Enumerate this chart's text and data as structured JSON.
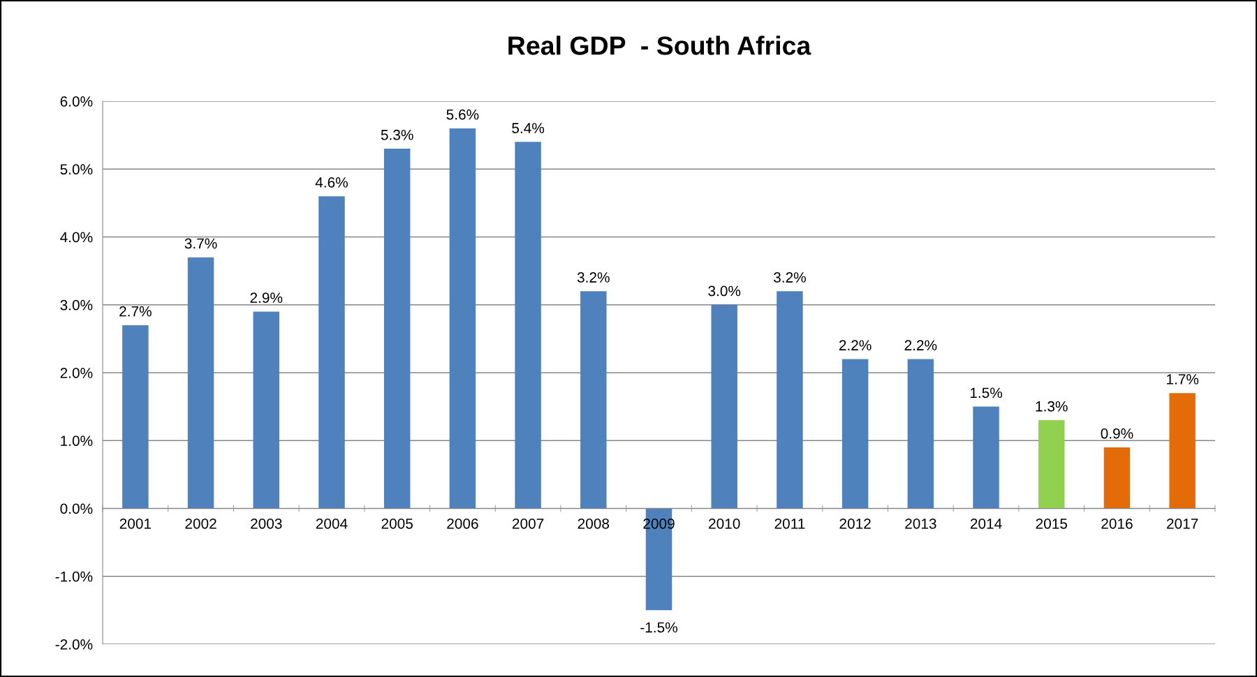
{
  "chart_data": {
    "type": "bar",
    "title": "Real GDP  - South Africa",
    "categories": [
      "2001",
      "2002",
      "2003",
      "2004",
      "2005",
      "2006",
      "2007",
      "2008",
      "2009",
      "2010",
      "2011",
      "2012",
      "2013",
      "2014",
      "2015",
      "2016",
      "2017"
    ],
    "values": [
      2.7,
      3.7,
      2.9,
      4.6,
      5.3,
      5.6,
      5.4,
      3.2,
      -1.5,
      3.0,
      3.2,
      2.2,
      2.2,
      1.5,
      1.3,
      0.9,
      1.7
    ],
    "value_labels": [
      "2.7%",
      "3.7%",
      "2.9%",
      "4.6%",
      "5.3%",
      "5.6%",
      "5.4%",
      "3.2%",
      "-1.5%",
      "3.0%",
      "3.2%",
      "2.2%",
      "2.2%",
      "1.5%",
      "1.3%",
      "0.9%",
      "1.7%"
    ],
    "colors": [
      "#4f81bd",
      "#4f81bd",
      "#4f81bd",
      "#4f81bd",
      "#4f81bd",
      "#4f81bd",
      "#4f81bd",
      "#4f81bd",
      "#4f81bd",
      "#4f81bd",
      "#4f81bd",
      "#4f81bd",
      "#4f81bd",
      "#4f81bd",
      "#92d050",
      "#e36c09",
      "#e36c09"
    ],
    "ylim": [
      -2,
      6
    ],
    "yticks": [
      {
        "value": -2,
        "label": "-2.0%"
      },
      {
        "value": -1,
        "label": "-1.0%"
      },
      {
        "value": 0,
        "label": "0.0%"
      },
      {
        "value": 1,
        "label": "1.0%"
      },
      {
        "value": 2,
        "label": "2.0%"
      },
      {
        "value": 3,
        "label": "3.0%"
      },
      {
        "value": 4,
        "label": "4.0%"
      },
      {
        "value": 5,
        "label": "5.0%"
      },
      {
        "value": 6,
        "label": "6.0%"
      }
    ],
    "grid": "y"
  }
}
